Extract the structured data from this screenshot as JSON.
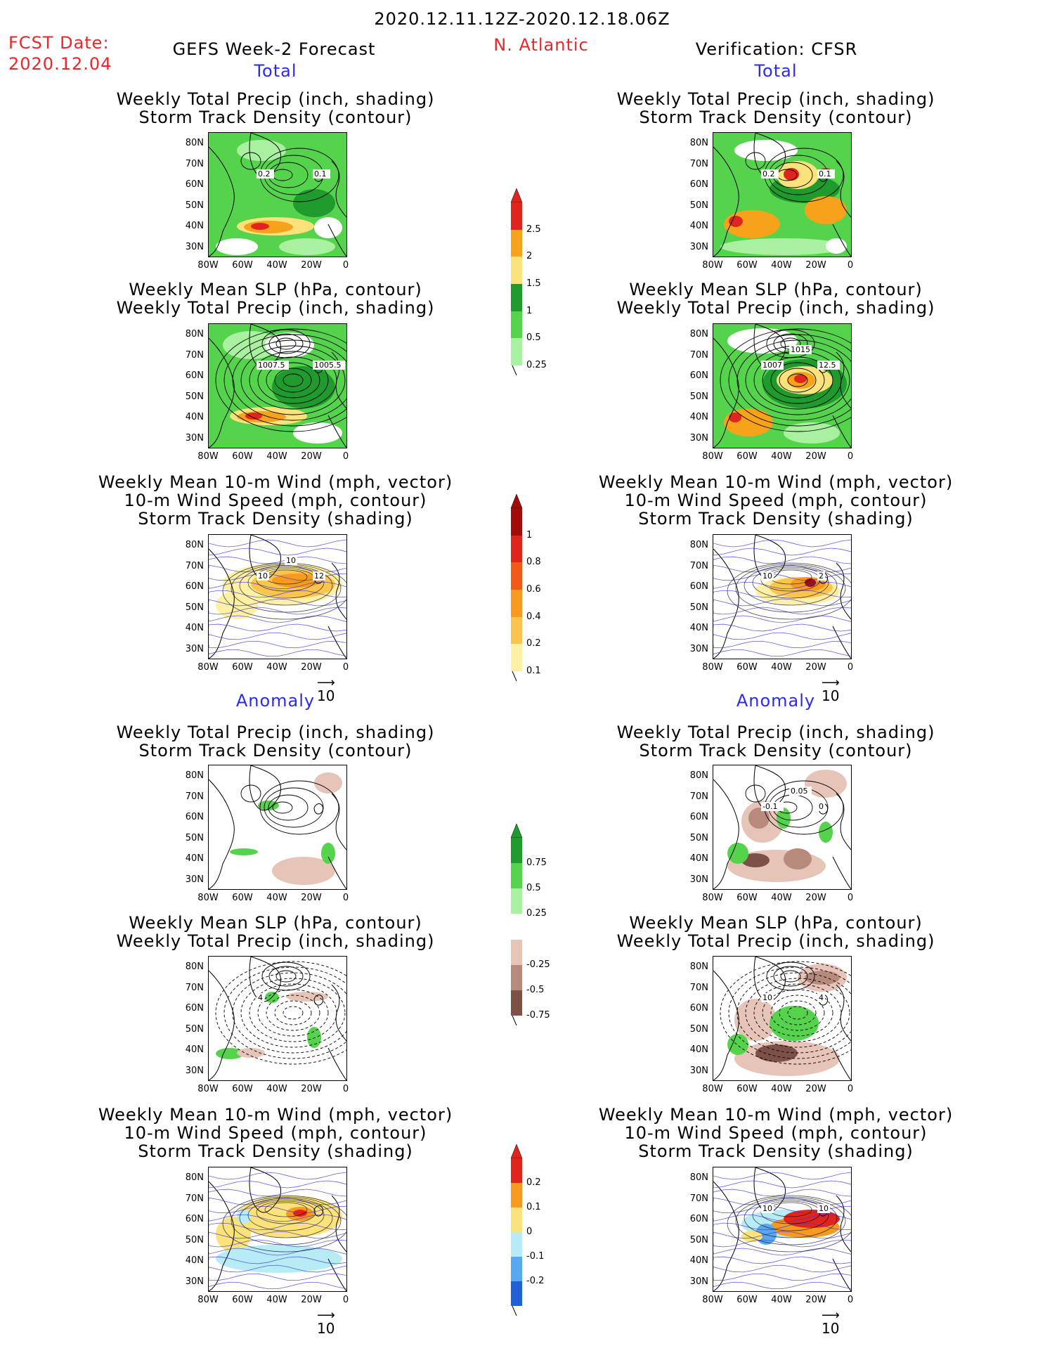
{
  "header": {
    "period": "2020.12.11.12Z-2020.12.18.06Z",
    "fcst_label": "FCST Date:",
    "fcst_date": "2020.12.04",
    "model": "GEFS Week-2 Forecast",
    "region": "N. Atlantic",
    "verification": "Verification: CFSR"
  },
  "sections": {
    "total": "Total",
    "anomaly": "Anomaly"
  },
  "panel_titles": {
    "precip_track": [
      "Weekly Total Precip (inch, shading)",
      "Storm Track Density (contour)"
    ],
    "slp_precip": [
      "Weekly Mean SLP (hPa, contour)",
      "Weekly Total Precip (inch, shading)"
    ],
    "wind_track": [
      "Weekly Mean 10-m Wind (mph, vector)",
      "10-m Wind Speed (mph, contour)",
      "Storm Track Density (shading)"
    ]
  },
  "axes": {
    "lat_labels": [
      "80N",
      "70N",
      "60N",
      "50N",
      "40N",
      "30N"
    ],
    "lon_labels": [
      "80W",
      "60W",
      "40W",
      "20W",
      "0"
    ]
  },
  "vector_ref": "10",
  "colorbars": {
    "precip_total": {
      "ticks": [
        "2.5",
        "2",
        "1.5",
        "1",
        "0.5",
        "0.25"
      ],
      "colors": [
        "#e0241e",
        "#f7a21b",
        "#fce27a",
        "#1f9a2c",
        "#55d34c",
        "#a9f0a0"
      ]
    },
    "track_total": {
      "ticks": [
        "1",
        "0.8",
        "0.6",
        "0.4",
        "0.2",
        "0.1"
      ],
      "colors": [
        "#a30a0a",
        "#e0241e",
        "#f25a18",
        "#f79a1f",
        "#fbc44e",
        "#fdf0a5"
      ]
    },
    "precip_anom": {
      "ticks": [
        "0.75",
        "0.5",
        "0.25",
        "-0.25",
        "-0.5",
        "-0.75"
      ],
      "colors": [
        "#1f9a2c",
        "#55d34c",
        "#a9f0a0",
        "#ffffff",
        "#e7c4b8",
        "#b88a7c",
        "#7d5147"
      ]
    },
    "track_anom": {
      "ticks": [
        "0.2",
        "0.1",
        "0",
        "-0.1",
        "-0.2"
      ],
      "colors": [
        "#e0241e",
        "#f79a1f",
        "#fbe27a",
        "#b7ecf7",
        "#57a8ef",
        "#1f62d6"
      ]
    }
  },
  "contour_labels": {
    "fc_precip_total": [
      "0.2",
      "0.1"
    ],
    "fc_slp_total": [
      "1007.5",
      "1005.5"
    ],
    "fc_wind_total": [
      "10",
      "12",
      "10"
    ],
    "vf_precip_total": [
      "0.2",
      "0.1"
    ],
    "vf_slp_total": [
      "1007",
      "12.5",
      "1015"
    ],
    "vf_wind_total": [
      "10",
      "2"
    ],
    "vf_precip_anom": [
      "-0.1",
      "0",
      "0.05"
    ],
    "fc_slp_anom": [
      "4"
    ],
    "vf_slp_anom": [
      "10",
      "4"
    ],
    "vf_wind_anom": [
      "10",
      "10"
    ]
  }
}
